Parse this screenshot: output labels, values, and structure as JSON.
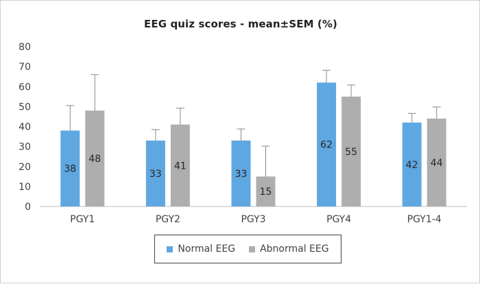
{
  "colors": {
    "normal": "#5fa7e1",
    "abnormal": "#aeaeae",
    "axis": "#bfbfbf",
    "error": "#888888"
  },
  "chart_data": {
    "type": "bar",
    "title": "EEG quiz scores - mean±SEM (%)",
    "xlabel": "",
    "ylabel": "",
    "ylim": [
      0,
      80
    ],
    "yticks": [
      0,
      10,
      20,
      30,
      40,
      50,
      60,
      70,
      80
    ],
    "grid": false,
    "legend_position": "bottom",
    "categories": [
      "PGY1",
      "PGY2",
      "PGY3",
      "PGY4",
      "PGY1-4"
    ],
    "series": [
      {
        "name": "Normal EEG",
        "values": [
          38,
          33,
          33,
          62,
          42
        ],
        "sem": [
          12.5,
          5.5,
          5.8,
          6.2,
          4.6
        ]
      },
      {
        "name": "Abnormal EEG",
        "values": [
          48,
          41,
          15,
          55,
          44
        ],
        "sem": [
          18,
          8.2,
          15.2,
          5.8,
          5.8
        ]
      }
    ],
    "data_labels": [
      [
        "38",
        "33",
        "33",
        "62",
        "42"
      ],
      [
        "48",
        "41",
        "15",
        "55",
        "44"
      ]
    ]
  }
}
